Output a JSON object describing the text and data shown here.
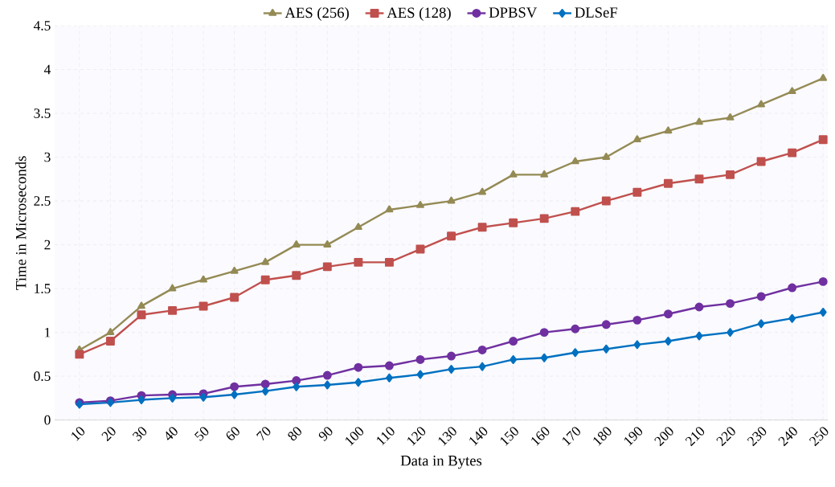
{
  "chart_data": {
    "type": "line",
    "xlabel": "Data in Bytes",
    "ylabel": "Time in Microseconds",
    "categories": [
      "10",
      "20",
      "30",
      "40",
      "50",
      "60",
      "70",
      "80",
      "90",
      "100",
      "110",
      "120",
      "130",
      "140",
      "150",
      "160",
      "170",
      "180",
      "190",
      "200",
      "210",
      "220",
      "230",
      "240",
      "250"
    ],
    "ylim": [
      0,
      4.5
    ],
    "yticks": [
      0,
      0.5,
      1,
      1.5,
      2,
      2.5,
      3,
      3.5,
      4,
      4.5
    ],
    "grid": true,
    "legend": "top",
    "line_style": "solid",
    "series": [
      {
        "name": "AES (256)",
        "color": "#948a54",
        "marker": "triangle",
        "values": [
          0.8,
          1.0,
          1.3,
          1.5,
          1.6,
          1.7,
          1.8,
          2.0,
          2.0,
          2.2,
          2.4,
          2.45,
          2.5,
          2.6,
          2.8,
          2.8,
          2.95,
          3.0,
          3.2,
          3.3,
          3.4,
          3.45,
          3.6,
          3.75,
          3.9
        ]
      },
      {
        "name": "AES (128)",
        "color": "#c0504d",
        "marker": "square",
        "values": [
          0.75,
          0.9,
          1.2,
          1.25,
          1.3,
          1.4,
          1.6,
          1.65,
          1.75,
          1.8,
          1.8,
          1.95,
          2.1,
          2.2,
          2.25,
          2.3,
          2.38,
          2.5,
          2.6,
          2.7,
          2.75,
          2.8,
          2.95,
          3.05,
          3.2
        ]
      },
      {
        "name": "DPBSV",
        "color": "#7030a0",
        "marker": "circle",
        "values": [
          0.2,
          0.22,
          0.28,
          0.29,
          0.3,
          0.38,
          0.41,
          0.45,
          0.51,
          0.6,
          0.62,
          0.69,
          0.73,
          0.8,
          0.9,
          1.0,
          1.04,
          1.09,
          1.14,
          1.21,
          1.29,
          1.33,
          1.41,
          1.51,
          1.58
        ]
      },
      {
        "name": "DLSeF",
        "color": "#0070c0",
        "marker": "diamond",
        "values": [
          0.18,
          0.2,
          0.23,
          0.25,
          0.26,
          0.29,
          0.33,
          0.38,
          0.4,
          0.43,
          0.48,
          0.52,
          0.58,
          0.61,
          0.69,
          0.71,
          0.77,
          0.81,
          0.86,
          0.9,
          0.96,
          1.0,
          1.1,
          1.16,
          1.23
        ]
      }
    ]
  }
}
